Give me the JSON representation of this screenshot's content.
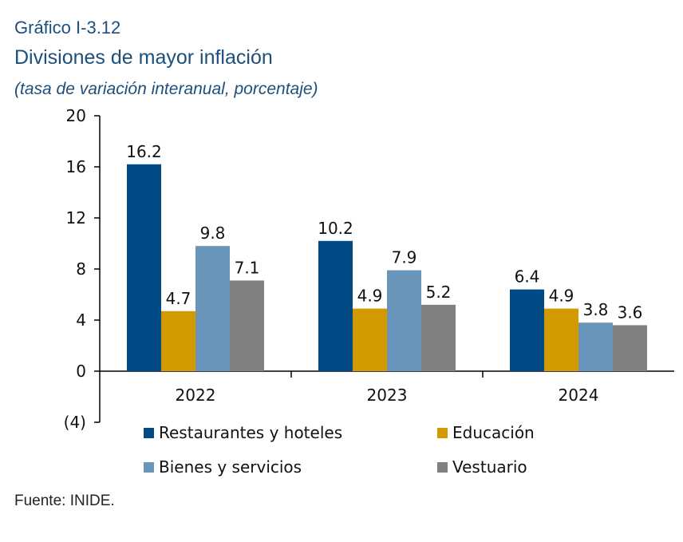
{
  "header": {
    "label": "Gráfico I-3.12",
    "title": "Divisiones de mayor inflación",
    "subtitle": "(tasa de variación interanual, porcentaje)"
  },
  "footer": {
    "source": "Fuente: INIDE."
  },
  "chart_data": {
    "type": "bar",
    "title": "Divisiones de mayor inflación",
    "subtitle": "(tasa de variación interanual, porcentaje)",
    "categories": [
      "2022",
      "2023",
      "2024"
    ],
    "series": [
      {
        "name": "Restaurantes y hoteles",
        "color": "#004a86",
        "values": [
          16.2,
          10.2,
          6.4
        ]
      },
      {
        "name": "Educación",
        "color": "#d39a00",
        "values": [
          4.7,
          4.9,
          4.9
        ]
      },
      {
        "name": "Bienes y servicios",
        "color": "#6a95bb",
        "values": [
          9.8,
          7.9,
          3.8
        ]
      },
      {
        "name": "Vestuario",
        "color": "#808080",
        "values": [
          7.1,
          5.2,
          3.6
        ]
      }
    ],
    "yticks": [
      {
        "value": 20,
        "label": "20"
      },
      {
        "value": 16,
        "label": "16"
      },
      {
        "value": 12,
        "label": "12"
      },
      {
        "value": 8,
        "label": "8"
      },
      {
        "value": 4,
        "label": "4"
      },
      {
        "value": 0,
        "label": "0"
      },
      {
        "value": -4,
        "label": "(4)"
      }
    ],
    "ylim": [
      -4,
      20
    ],
    "xlabel": "",
    "ylabel": "",
    "grid": false,
    "legend_position": "bottom"
  }
}
